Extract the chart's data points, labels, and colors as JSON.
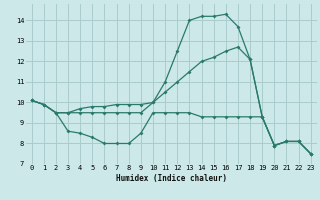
{
  "xlabel": "Humidex (Indice chaleur)",
  "bg_color": "#cce8e8",
  "grid_color": "#aacccc",
  "line_color": "#2a7a6a",
  "xlim": [
    -0.5,
    23.5
  ],
  "ylim": [
    7,
    14.8
  ],
  "yticks": [
    7,
    8,
    9,
    10,
    11,
    12,
    13,
    14
  ],
  "xticks": [
    0,
    1,
    2,
    3,
    4,
    5,
    6,
    7,
    8,
    9,
    10,
    11,
    12,
    13,
    14,
    15,
    16,
    17,
    18,
    19,
    20,
    21,
    22,
    23
  ],
  "curve1_x": [
    0,
    1,
    2,
    3,
    4,
    5,
    6,
    7,
    8,
    9,
    10,
    11,
    12,
    13,
    14,
    15,
    16,
    17,
    18,
    19,
    20,
    21,
    22,
    23
  ],
  "curve1_y": [
    10.1,
    9.9,
    9.5,
    8.6,
    8.5,
    8.3,
    8.0,
    8.0,
    8.0,
    8.5,
    9.5,
    9.5,
    9.5,
    9.5,
    9.3,
    9.3,
    9.3,
    9.3,
    9.3,
    9.3,
    7.9,
    8.1,
    8.1,
    7.5
  ],
  "curve2_x": [
    0,
    1,
    2,
    3,
    4,
    5,
    6,
    7,
    8,
    9,
    10,
    11,
    12,
    13,
    14,
    15,
    16,
    17,
    18,
    19,
    20,
    21,
    22,
    23
  ],
  "curve2_y": [
    10.1,
    9.9,
    9.5,
    9.5,
    9.7,
    9.8,
    9.8,
    9.9,
    9.9,
    9.9,
    10.0,
    10.5,
    11.0,
    11.5,
    12.0,
    12.2,
    12.5,
    12.7,
    12.1,
    9.3,
    7.9,
    8.1,
    8.1,
    7.5
  ],
  "curve3_x": [
    0,
    1,
    2,
    3,
    4,
    5,
    6,
    7,
    8,
    9,
    10,
    11,
    12,
    13,
    14,
    15,
    16,
    17,
    18,
    19,
    20,
    21,
    22,
    23
  ],
  "curve3_y": [
    10.1,
    9.9,
    9.5,
    9.5,
    9.5,
    9.5,
    9.5,
    9.5,
    9.5,
    9.5,
    10.0,
    11.0,
    12.5,
    14.0,
    14.2,
    14.2,
    14.3,
    13.7,
    12.1,
    9.3,
    7.9,
    8.1,
    8.1,
    7.5
  ]
}
